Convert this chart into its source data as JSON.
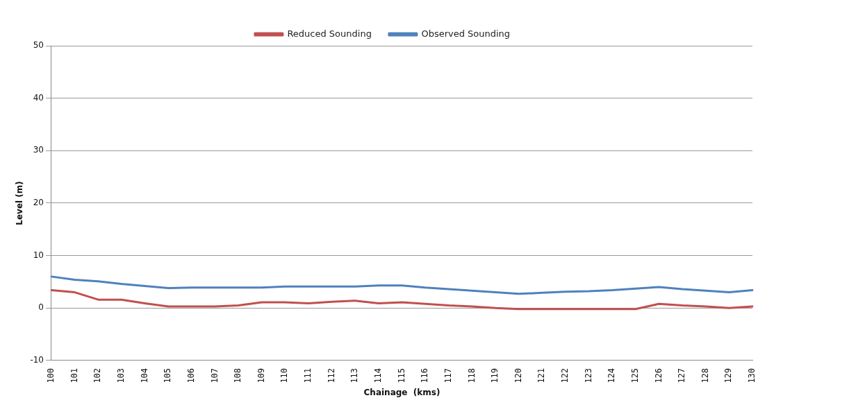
{
  "chart_data": {
    "type": "line",
    "xlabel": "Chainage  (kms)",
    "ylabel": "Level (m)",
    "categories": [
      "100",
      "101",
      "102",
      "103",
      "104",
      "105",
      "106",
      "107",
      "108",
      "109",
      "110",
      "111",
      "112",
      "113",
      "114",
      "115",
      "116",
      "117",
      "118",
      "119",
      "120",
      "121",
      "122",
      "123",
      "124",
      "125",
      "126",
      "127",
      "128",
      "129",
      "130"
    ],
    "series": [
      {
        "name": "Reduced Sounding",
        "color": "#c0504d",
        "values": [
          3.4,
          3.0,
          1.6,
          1.6,
          0.9,
          0.3,
          0.3,
          0.3,
          0.5,
          1.1,
          1.1,
          0.9,
          1.2,
          1.4,
          0.9,
          1.1,
          0.8,
          0.5,
          0.3,
          0,
          -0.2,
          -0.2,
          -0.2,
          -0.2,
          -0.2,
          -0.2,
          0.8,
          0.5,
          0.3,
          0,
          0.3
        ]
      },
      {
        "name": "Observed Sounding",
        "color": "#4f81bd",
        "values": [
          6.0,
          5.4,
          5.1,
          4.6,
          4.2,
          3.8,
          3.9,
          3.9,
          3.9,
          3.9,
          4.1,
          4.1,
          4.1,
          4.1,
          4.3,
          4.3,
          3.9,
          3.6,
          3.3,
          3.0,
          2.7,
          2.9,
          3.1,
          3.2,
          3.4,
          3.7,
          4.0,
          3.6,
          3.3,
          3.0,
          3.4
        ]
      }
    ],
    "ylim": [
      -10,
      50
    ],
    "yticks": [
      -10,
      0,
      10,
      20,
      30,
      40,
      50
    ],
    "grid": "y",
    "legend": "top",
    "marker": "none",
    "line_style": "solid"
  }
}
